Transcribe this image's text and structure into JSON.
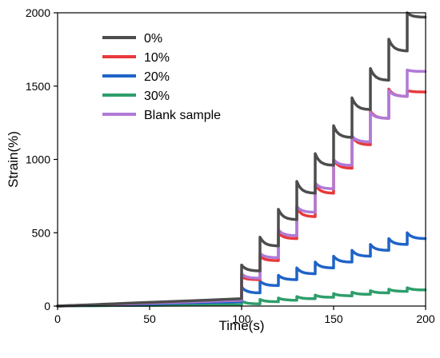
{
  "chart_data": {
    "type": "line",
    "xlabel": "Time(s)",
    "ylabel": "Strain(%)",
    "xlim": [
      0,
      200
    ],
    "ylim": [
      0,
      2000
    ],
    "xticks": [
      "0",
      "50",
      "100",
      "150",
      "200"
    ],
    "yticks": [
      "0",
      "500",
      "1000",
      "1500",
      "2000"
    ],
    "grid": false,
    "legend_position": "top-left",
    "cycle_times": [
      100,
      110,
      120,
      130,
      140,
      150,
      160,
      170,
      180,
      190
    ],
    "series": [
      {
        "name": "0%",
        "color": "#4d4d4d",
        "creep_strain": [
          [
            0,
            0
          ],
          [
            10,
            5
          ],
          [
            20,
            10
          ],
          [
            30,
            15
          ],
          [
            40,
            20
          ],
          [
            50,
            25
          ],
          [
            60,
            30
          ],
          [
            70,
            35
          ],
          [
            80,
            40
          ],
          [
            90,
            45
          ],
          [
            100,
            50
          ]
        ],
        "cycle_peaks": [
          280,
          470,
          660,
          850,
          1040,
          1230,
          1420,
          1620,
          1820,
          2000
        ],
        "cycle_ends": [
          240,
          410,
          590,
          770,
          960,
          1150,
          1340,
          1540,
          1740,
          1970
        ]
      },
      {
        "name": "10%",
        "color": "#e8393c",
        "creep_strain": [
          [
            0,
            0
          ],
          [
            10,
            4
          ],
          [
            20,
            8
          ],
          [
            30,
            12
          ],
          [
            40,
            16
          ],
          [
            50,
            20
          ],
          [
            60,
            24
          ],
          [
            70,
            28
          ],
          [
            80,
            32
          ],
          [
            90,
            36
          ],
          [
            100,
            40
          ]
        ],
        "cycle_peaks": [
          200,
          340,
          500,
          670,
          830,
          1000,
          1160,
          1330,
          1480,
          1470
        ],
        "cycle_ends": [
          180,
          310,
          460,
          610,
          770,
          940,
          1100,
          1280,
          1430,
          1460
        ]
      },
      {
        "name": "20%",
        "color": "#1f63c7",
        "creep_strain": [
          [
            0,
            0
          ],
          [
            10,
            3
          ],
          [
            20,
            6
          ],
          [
            30,
            9
          ],
          [
            40,
            12
          ],
          [
            50,
            15
          ],
          [
            60,
            18
          ],
          [
            70,
            21
          ],
          [
            80,
            24
          ],
          [
            90,
            27
          ],
          [
            100,
            30
          ]
        ],
        "cycle_peaks": [
          130,
          170,
          210,
          260,
          300,
          340,
          380,
          420,
          460,
          500
        ],
        "cycle_ends": [
          90,
          140,
          180,
          220,
          260,
          300,
          340,
          380,
          420,
          460
        ]
      },
      {
        "name": "30%",
        "color": "#2e9e6b",
        "creep_strain": [
          [
            0,
            0
          ],
          [
            10,
            1
          ],
          [
            20,
            2
          ],
          [
            30,
            3
          ],
          [
            40,
            4
          ],
          [
            50,
            5
          ],
          [
            60,
            6
          ],
          [
            70,
            7
          ],
          [
            80,
            8
          ],
          [
            90,
            9
          ],
          [
            100,
            10
          ]
        ],
        "cycle_peaks": [
          35,
          45,
          55,
          65,
          75,
          85,
          95,
          105,
          115,
          125
        ],
        "cycle_ends": [
          15,
          30,
          40,
          50,
          60,
          70,
          80,
          90,
          100,
          110
        ]
      },
      {
        "name": "Blank sample",
        "color": "#b07ad8",
        "creep_strain": [
          [
            0,
            0
          ],
          [
            10,
            4
          ],
          [
            20,
            8
          ],
          [
            30,
            12
          ],
          [
            40,
            16
          ],
          [
            50,
            20
          ],
          [
            60,
            24
          ],
          [
            70,
            28
          ],
          [
            80,
            32
          ],
          [
            90,
            36
          ],
          [
            100,
            40
          ]
        ],
        "cycle_peaks": [
          220,
          360,
          520,
          680,
          840,
          1000,
          1160,
          1320,
          1470,
          1610
        ],
        "cycle_ends": [
          190,
          330,
          480,
          640,
          800,
          960,
          1120,
          1280,
          1430,
          1600
        ]
      }
    ]
  }
}
